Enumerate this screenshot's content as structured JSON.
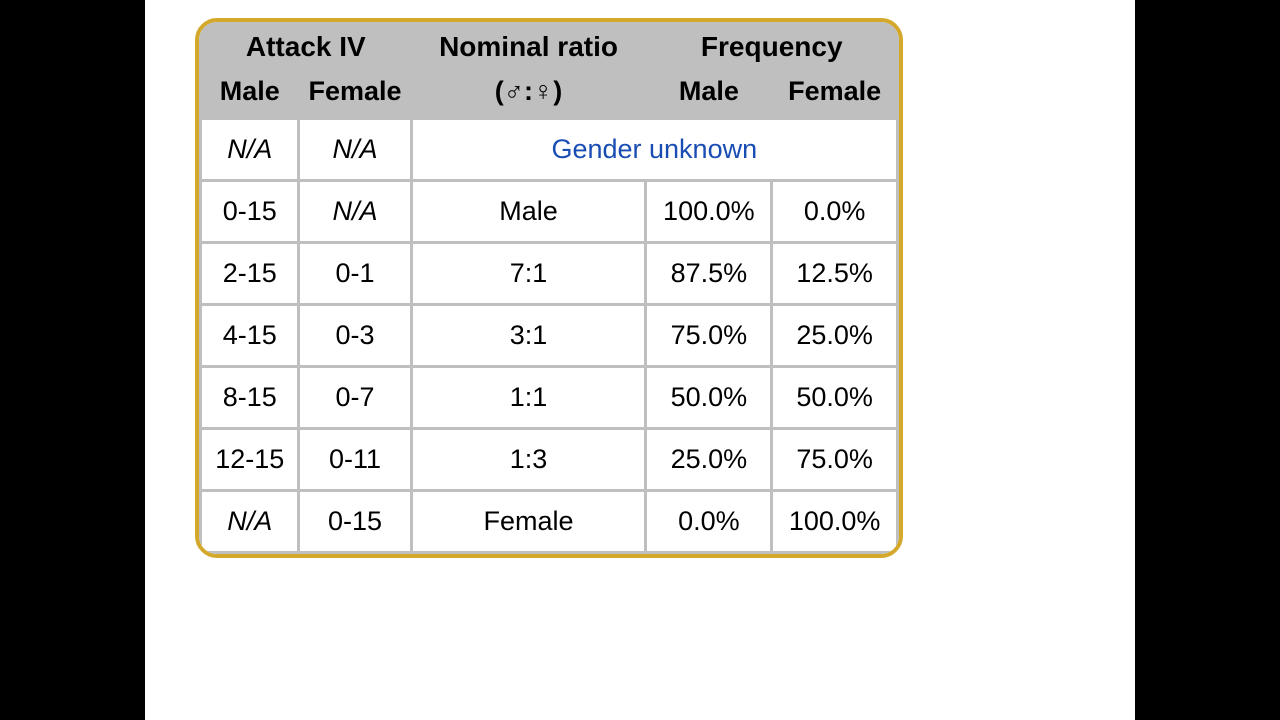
{
  "table": {
    "border_color": "#d4a82a",
    "header_bg": "#bfbfbf",
    "cell_bg": "#ffffff",
    "link_color": "#1a4db3",
    "text_color": "#000000",
    "font_size_header": 28,
    "font_size_cell": 27,
    "headers_top": {
      "attack_iv": "Attack IV",
      "nominal_ratio": "Nominal ratio",
      "frequency": "Frequency"
    },
    "headers_sub": {
      "male": "Male",
      "female": "Female",
      "ratio_symbols": "(♂:♀)",
      "freq_male": "Male",
      "freq_female": "Female"
    },
    "gender_unknown_label": "Gender unknown",
    "rows": [
      {
        "iv_male": "N/A",
        "iv_male_italic": true,
        "iv_female": "N/A",
        "iv_female_italic": true,
        "ratio": null,
        "freq_male": null,
        "freq_female": null,
        "gender_unknown": true
      },
      {
        "iv_male": "0-15",
        "iv_male_italic": false,
        "iv_female": "N/A",
        "iv_female_italic": true,
        "ratio": "Male",
        "freq_male": "100.0%",
        "freq_female": "0.0%",
        "gender_unknown": false
      },
      {
        "iv_male": "2-15",
        "iv_male_italic": false,
        "iv_female": "0-1",
        "iv_female_italic": false,
        "ratio": "7:1",
        "freq_male": "87.5%",
        "freq_female": "12.5%",
        "gender_unknown": false
      },
      {
        "iv_male": "4-15",
        "iv_male_italic": false,
        "iv_female": "0-3",
        "iv_female_italic": false,
        "ratio": "3:1",
        "freq_male": "75.0%",
        "freq_female": "25.0%",
        "gender_unknown": false
      },
      {
        "iv_male": "8-15",
        "iv_male_italic": false,
        "iv_female": "0-7",
        "iv_female_italic": false,
        "ratio": "1:1",
        "freq_male": "50.0%",
        "freq_female": "50.0%",
        "gender_unknown": false
      },
      {
        "iv_male": "12-15",
        "iv_male_italic": false,
        "iv_female": "0-11",
        "iv_female_italic": false,
        "ratio": "1:3",
        "freq_male": "25.0%",
        "freq_female": "75.0%",
        "gender_unknown": false
      },
      {
        "iv_male": "N/A",
        "iv_male_italic": true,
        "iv_female": "0-15",
        "iv_female_italic": false,
        "ratio": "Female",
        "freq_male": "0.0%",
        "freq_female": "100.0%",
        "gender_unknown": false
      }
    ]
  }
}
